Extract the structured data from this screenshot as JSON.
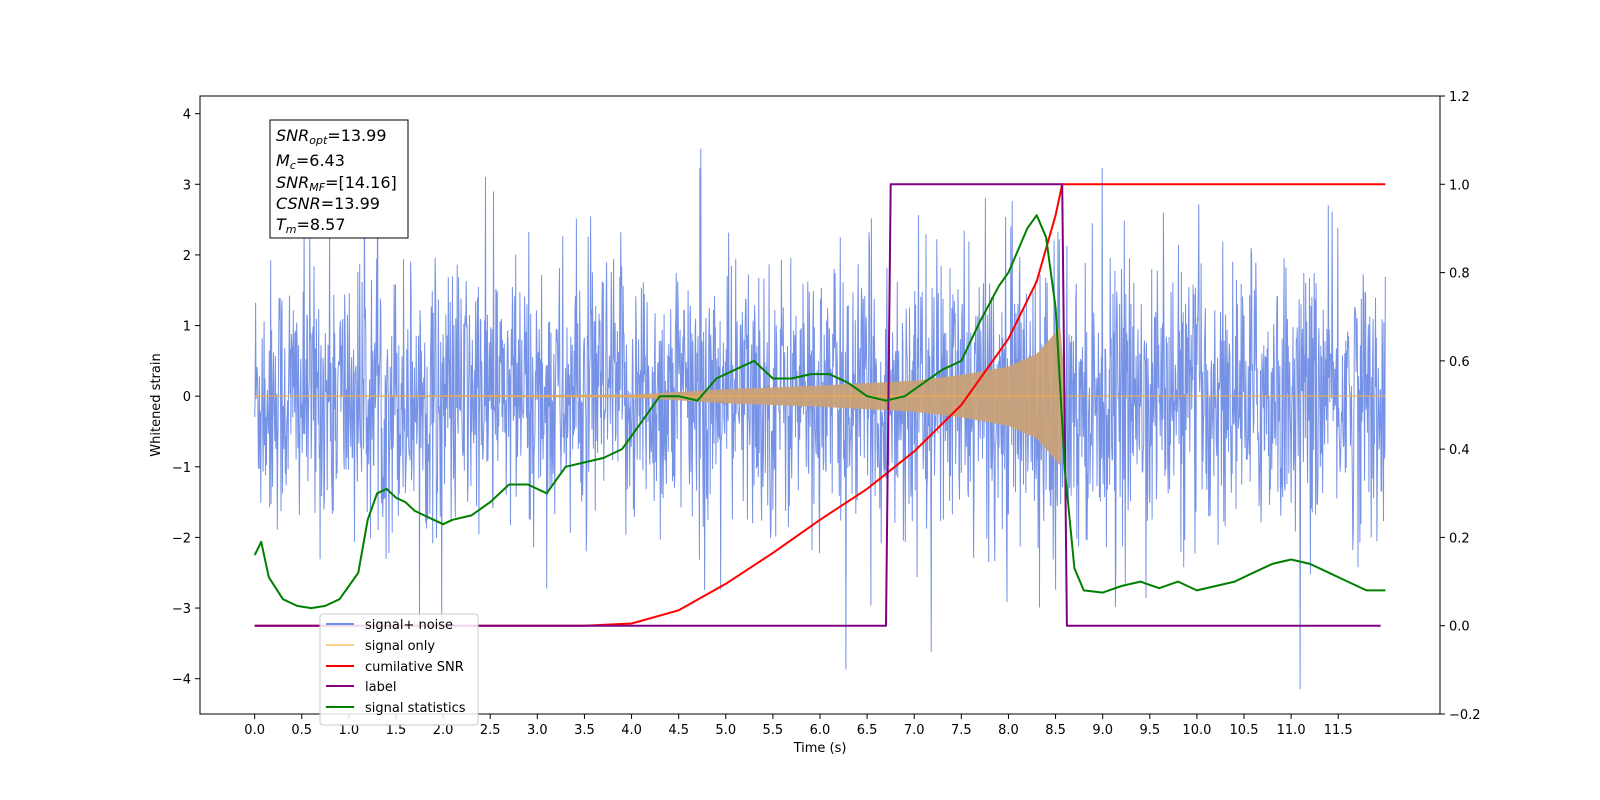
{
  "chart_data": {
    "type": "line",
    "xlabel": "Time (s)",
    "ylabel": "Whitened strain",
    "xlim": [
      -0.58,
      12.58
    ],
    "ylim": [
      -4.5,
      4.25
    ],
    "y2lim": [
      -0.2,
      1.2
    ],
    "grid": false,
    "legend_position": "lower-left",
    "x_ticks": [
      "0.0",
      "0.5",
      "1.0",
      "1.5",
      "2.0",
      "2.5",
      "3.0",
      "3.5",
      "4.0",
      "4.5",
      "5.0",
      "5.5",
      "6.0",
      "6.5",
      "7.0",
      "7.5",
      "8.0",
      "8.5",
      "9.0",
      "9.5",
      "10.0",
      "10.5",
      "11.0",
      "11.5"
    ],
    "y_ticks": [
      "4",
      "3",
      "2",
      "1",
      "0",
      "−1",
      "−2",
      "−3",
      "−4"
    ],
    "y2_ticks": [
      "1.2",
      "1.0",
      "0.8",
      "0.6",
      "0.4",
      "0.2",
      "0.0",
      "−0.2"
    ],
    "annotation": {
      "snr_opt": {
        "sym": "SNR",
        "sub": "opt",
        "value": "=13.99"
      },
      "mc": {
        "sym": "M",
        "sub": "c",
        "value": "=6.43"
      },
      "snr_mf": {
        "sym": "SNR",
        "sub": "MF",
        "value": "=[14.16]"
      },
      "csnr": {
        "sym": "CSNR",
        "value": "=13.99"
      },
      "tm": {
        "sym": "T",
        "sub": "m",
        "value": "=8.57"
      }
    },
    "series": [
      {
        "name": "signal+ noise",
        "color": "#6f8ce6",
        "axis": "left",
        "description_values": {
          "noise_std_approx": 1.0,
          "x_range": [
            0.0,
            12.0
          ]
        }
      },
      {
        "name": "signal only",
        "color": "#f5b041",
        "axis": "left",
        "envelope": {
          "x": [
            0.0,
            4.0,
            5.0,
            6.0,
            7.0,
            7.5,
            8.0,
            8.3,
            8.5,
            8.56,
            8.6,
            12.0
          ],
          "amp": [
            0.0,
            0.02,
            0.1,
            0.15,
            0.22,
            0.3,
            0.42,
            0.6,
            0.9,
            1.0,
            0.0,
            0.0
          ]
        }
      },
      {
        "name": "cumilative SNR",
        "color": "#ff0000",
        "axis": "right",
        "x": [
          0.0,
          3.5,
          4.0,
          4.5,
          5.0,
          5.5,
          6.0,
          6.5,
          7.0,
          7.5,
          8.0,
          8.3,
          8.5,
          8.57,
          8.6,
          12.0
        ],
        "y": [
          0.0,
          0.0,
          0.005,
          0.035,
          0.095,
          0.165,
          0.24,
          0.31,
          0.395,
          0.5,
          0.65,
          0.78,
          0.93,
          1.0,
          1.0,
          1.0
        ]
      },
      {
        "name": "label",
        "color": "#800080",
        "axis": "right",
        "x": [
          0.0,
          6.7,
          6.75,
          8.57,
          8.62,
          11.95
        ],
        "y": [
          0.0,
          0.0,
          1.0,
          1.0,
          0.0,
          0.0
        ]
      },
      {
        "name": "signal statistics",
        "color": "#008000",
        "axis": "right",
        "x": [
          0.0,
          0.07,
          0.15,
          0.3,
          0.45,
          0.6,
          0.75,
          0.9,
          1.0,
          1.1,
          1.2,
          1.3,
          1.4,
          1.5,
          1.6,
          1.7,
          1.8,
          1.9,
          2.0,
          2.1,
          2.3,
          2.5,
          2.7,
          2.9,
          3.1,
          3.3,
          3.5,
          3.7,
          3.9,
          4.1,
          4.3,
          4.5,
          4.7,
          4.9,
          5.1,
          5.3,
          5.5,
          5.7,
          5.9,
          6.1,
          6.3,
          6.5,
          6.7,
          6.9,
          7.1,
          7.3,
          7.5,
          7.7,
          7.9,
          8.0,
          8.1,
          8.2,
          8.3,
          8.4,
          8.5,
          8.6,
          8.7,
          8.8,
          9.0,
          9.2,
          9.4,
          9.6,
          9.8,
          10.0,
          10.2,
          10.4,
          10.6,
          10.8,
          11.0,
          11.2,
          11.4,
          11.6,
          11.8,
          12.0
        ],
        "y": [
          0.16,
          0.19,
          0.11,
          0.06,
          0.045,
          0.04,
          0.045,
          0.06,
          0.09,
          0.12,
          0.24,
          0.3,
          0.31,
          0.29,
          0.28,
          0.26,
          0.25,
          0.24,
          0.23,
          0.24,
          0.25,
          0.28,
          0.32,
          0.32,
          0.3,
          0.36,
          0.37,
          0.38,
          0.4,
          0.46,
          0.52,
          0.52,
          0.51,
          0.56,
          0.58,
          0.6,
          0.56,
          0.56,
          0.57,
          0.57,
          0.55,
          0.52,
          0.51,
          0.52,
          0.55,
          0.58,
          0.6,
          0.69,
          0.77,
          0.8,
          0.85,
          0.9,
          0.93,
          0.88,
          0.72,
          0.35,
          0.13,
          0.08,
          0.075,
          0.09,
          0.1,
          0.085,
          0.1,
          0.08,
          0.09,
          0.1,
          0.12,
          0.14,
          0.15,
          0.14,
          0.12,
          0.1,
          0.08,
          0.08
        ]
      }
    ]
  }
}
